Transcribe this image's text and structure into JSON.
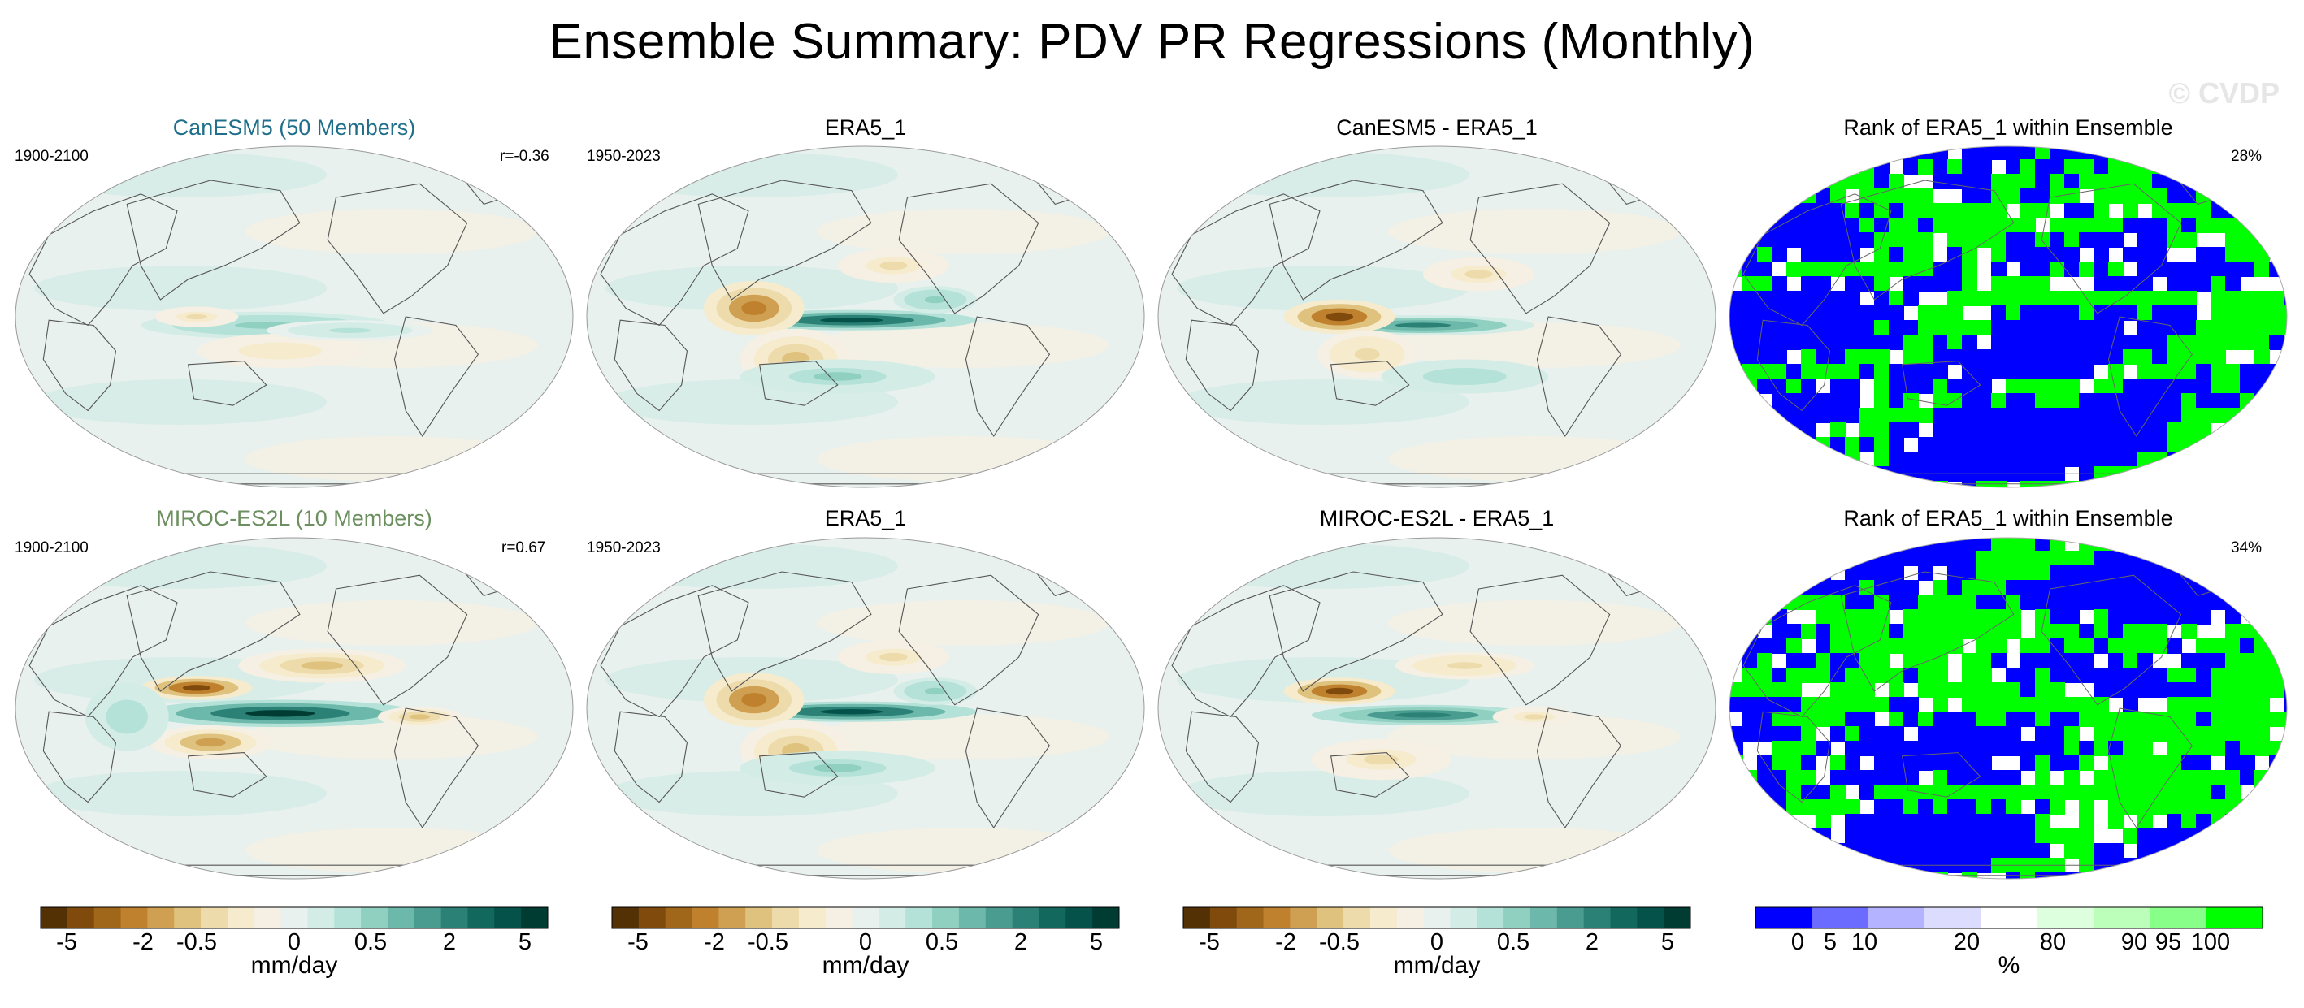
{
  "figure": {
    "title": "Ensemble Summary: PDV PR Regressions (Monthly)",
    "watermark": "© CVDP"
  },
  "chart_data": [
    {
      "type": "heatmap",
      "title": "CanESM5 (50 Members)",
      "title_color": "#1f6f8b",
      "period": "1900-2100",
      "stat": "r=-0.36",
      "units": "mm/day",
      "colorscale": "brown-teal"
    },
    {
      "type": "heatmap",
      "title": "ERA5_1",
      "title_color": "#000000",
      "period": "1950-2023",
      "stat": "",
      "units": "mm/day",
      "colorscale": "brown-teal"
    },
    {
      "type": "heatmap",
      "title": "CanESM5 - ERA5_1",
      "title_color": "#000000",
      "period": "",
      "stat": "",
      "units": "mm/day",
      "colorscale": "brown-teal"
    },
    {
      "type": "heatmap",
      "title": "Rank of ERA5_1 within Ensemble",
      "title_color": "#000000",
      "period": "",
      "stat": "28%",
      "units": "%",
      "colorscale": "rank"
    },
    {
      "type": "heatmap",
      "title": "MIROC-ES2L (10 Members)",
      "title_color": "#6b8f5e",
      "period": "1900-2100",
      "stat": "r=0.67",
      "units": "mm/day",
      "colorscale": "brown-teal"
    },
    {
      "type": "heatmap",
      "title": "ERA5_1",
      "title_color": "#000000",
      "period": "1950-2023",
      "stat": "",
      "units": "mm/day",
      "colorscale": "brown-teal"
    },
    {
      "type": "heatmap",
      "title": "MIROC-ES2L - ERA5_1",
      "title_color": "#000000",
      "period": "",
      "stat": "",
      "units": "mm/day",
      "colorscale": "brown-teal"
    },
    {
      "type": "heatmap",
      "title": "Rank of ERA5_1 within Ensemble",
      "title_color": "#000000",
      "period": "",
      "stat": "34%",
      "units": "%",
      "colorscale": "rank"
    }
  ],
  "colorbars": {
    "mm_day": {
      "label": "mm/day",
      "ticks": [
        "-5",
        "-2",
        "-0.5",
        "0",
        "0.5",
        "2",
        "5"
      ],
      "colors": [
        "#543005",
        "#7f4a0c",
        "#a0661a",
        "#bf812d",
        "#cfa052",
        "#dfc27d",
        "#eedbab",
        "#f6ebcc",
        "#f5f0e3",
        "#e8f1ee",
        "#d4ece6",
        "#b4e2d8",
        "#8fd0c1",
        "#6cb8aa",
        "#4a9c90",
        "#2b8176",
        "#12685d",
        "#04524a",
        "#013c33"
      ]
    },
    "percent": {
      "label": "%",
      "ticks": [
        "0",
        "5",
        "10",
        "20",
        "80",
        "90",
        "95",
        "100"
      ],
      "colors": [
        "#0000ff",
        "#6b6bff",
        "#b3b3ff",
        "#dcdcff",
        "#ffffff",
        "#ddffdd",
        "#bbffbb",
        "#88ff88",
        "#00ff00"
      ]
    }
  }
}
